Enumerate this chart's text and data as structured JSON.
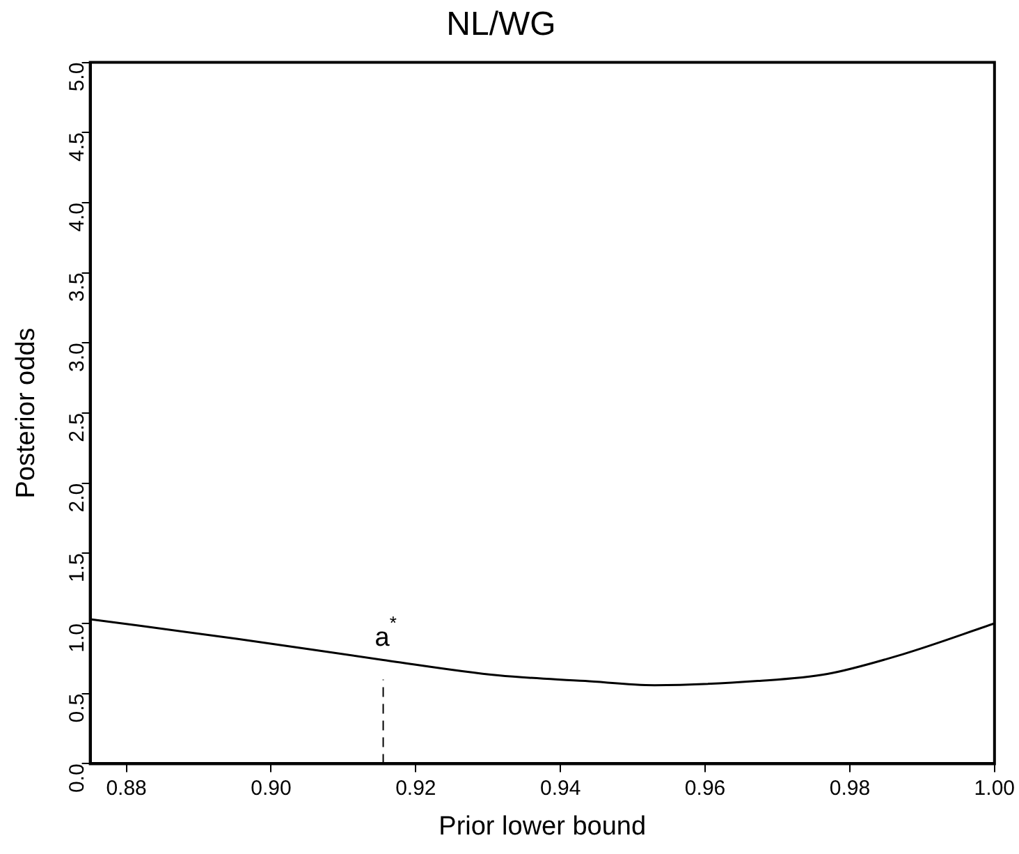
{
  "chart_data": {
    "type": "line",
    "title": "NL/WG",
    "xlabel": "Prior lower bound",
    "ylabel": "Posterior odds",
    "x": [
      0.875,
      0.8954,
      0.9155,
      0.9314,
      0.9434,
      0.953,
      0.9673,
      0.9769,
      0.9873,
      1.0
    ],
    "series": [
      {
        "color": "#000000",
        "values": [
          1.03,
          0.89,
          0.74,
          0.63,
          0.59,
          0.56,
          0.59,
          0.64,
          0.78,
          1.0
        ]
      }
    ],
    "xlim": [
      0.875,
      1.0
    ],
    "xticks": [
      {
        "value": 0.88,
        "label": "0.88"
      },
      {
        "value": 0.9,
        "label": "0.90"
      },
      {
        "value": 0.92,
        "label": "0.92"
      },
      {
        "value": 0.94,
        "label": "0.94"
      },
      {
        "value": 0.96,
        "label": "0.96"
      },
      {
        "value": 0.98,
        "label": "0.98"
      },
      {
        "value": 1.0,
        "label": "1.00"
      }
    ],
    "ylim": [
      0,
      5
    ],
    "yticks": [
      {
        "value": 0,
        "label": "0.0"
      },
      {
        "value": 0.5,
        "label": "0.5"
      },
      {
        "value": 1,
        "label": "1.0"
      },
      {
        "value": 1.5,
        "label": "1.5"
      },
      {
        "value": 2,
        "label": "2.0"
      },
      {
        "value": 2.5,
        "label": "2.5"
      },
      {
        "value": 3,
        "label": "3.0"
      },
      {
        "value": 3.5,
        "label": "3.5"
      },
      {
        "value": 4,
        "label": "4.0"
      },
      {
        "value": 4.5,
        "label": "4.5"
      },
      {
        "value": 5,
        "label": "5.0"
      }
    ],
    "annotations": [
      {
        "text": "a$^{*}$",
        "x": 0.9155,
        "y": 0.74
      }
    ],
    "grid": false,
    "legend": false,
    "marker": "none",
    "line_style": "solid"
  }
}
